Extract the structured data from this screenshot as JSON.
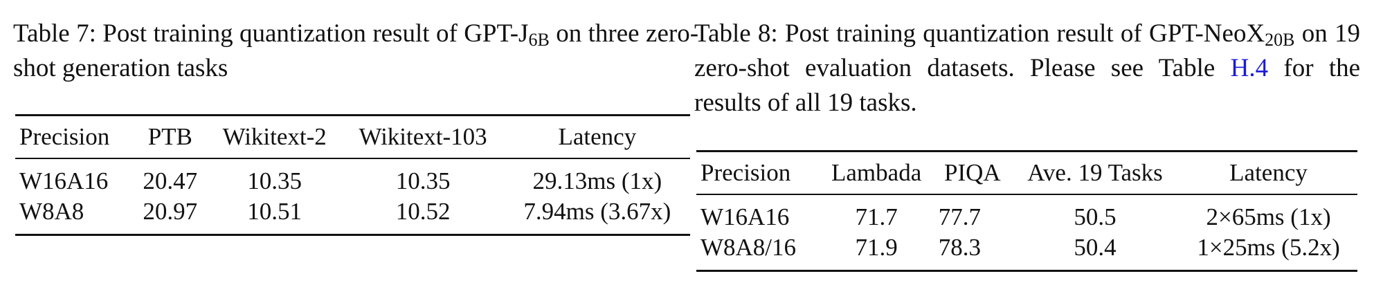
{
  "tables": [
    {
      "caption": {
        "label": "Table 7:",
        "text": "Post training quantization result of GPT-J",
        "sub": "6B",
        "rest": "on three zero-shot generation tasks"
      },
      "header": [
        "Precision",
        "PTB",
        "Wikitext-2",
        "Wikitext-103",
        "Latency"
      ],
      "rows": [
        [
          "W16A16",
          "20.47",
          "10.35",
          "10.35",
          "29.13ms (1x)"
        ],
        [
          "W8A8",
          "20.97",
          "10.51",
          "10.52",
          "7.94ms (3.67x)"
        ]
      ]
    },
    {
      "caption": {
        "label": "Table 8:",
        "text": "Post training quantization result of GPT-NeoX",
        "sub": "20B",
        "rest": "on 19 zero-shot evaluation datasets. Please see Table",
        "link": "H.4",
        "tail": "for the results of all 19 tasks."
      },
      "header": [
        "Precision",
        "Lambada",
        "PIQA",
        "Ave. 19 Tasks",
        "Latency"
      ],
      "rows": [
        [
          "W16A16",
          "71.7",
          "77.7",
          "50.5",
          "2×65ms (1x)"
        ],
        [
          "W8A8/16",
          "71.9",
          "78.3",
          "50.4",
          "1×25ms (5.2x)"
        ]
      ]
    }
  ]
}
